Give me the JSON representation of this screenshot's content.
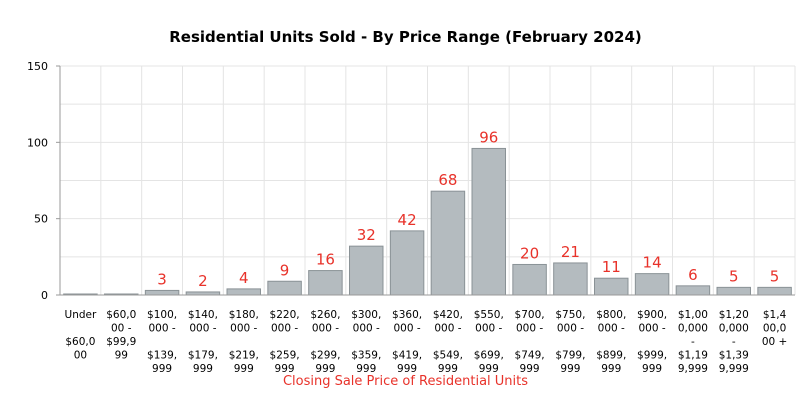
{
  "chart_data": {
    "type": "bar",
    "title": "Residential Units Sold - By Price Range (February 2024)",
    "xlabel": "Closing Sale Price of Residential Units",
    "ylabel": "",
    "ylim": [
      0,
      150
    ],
    "yticks": [
      "0",
      "50",
      "100",
      "150"
    ],
    "grid": true,
    "categories": [
      "Under $60,000",
      "$60,000 - $99,999",
      "$100,000 - $139,999",
      "$140,000 - $179,999",
      "$180,000 - $219,999",
      "$220,000 - $259,999",
      "$260,000 - $299,999",
      "$300,000 - $359,999",
      "$360,000 - $419,999",
      "$420,000 - $549,999",
      "$550,000 - $699,999",
      "$700,000 - $749,999",
      "$750,000 - $799,999",
      "$800,000 - $899,999",
      "$900,000 - $999,999",
      "$1,000,000 - $1,199,999",
      "$1,200,000 - $1,399,999",
      "$1,400,000 +"
    ],
    "category_lines": [
      [
        "Under",
        "",
        "$60,0",
        "00"
      ],
      [
        "$60,0",
        "00 -",
        "$99,9",
        "99"
      ],
      [
        "$100,",
        "000 -",
        "",
        "$139,",
        "999"
      ],
      [
        "$140,",
        "000 -",
        "",
        "$179,",
        "999"
      ],
      [
        "$180,",
        "000 -",
        "",
        "$219,",
        "999"
      ],
      [
        "$220,",
        "000 -",
        "",
        "$259,",
        "999"
      ],
      [
        "$260,",
        "000 -",
        "",
        "$299,",
        "999"
      ],
      [
        "$300,",
        "000 -",
        "",
        "$359,",
        "999"
      ],
      [
        "$360,",
        "000 -",
        "",
        "$419,",
        "999"
      ],
      [
        "$420,",
        "000 -",
        "",
        "$549,",
        "999"
      ],
      [
        "$550,",
        "000 -",
        "",
        "$699,",
        "999"
      ],
      [
        "$700,",
        "000 -",
        "",
        "$749,",
        "999"
      ],
      [
        "$750,",
        "000 -",
        "",
        "$799,",
        "999"
      ],
      [
        "$800,",
        "000 -",
        "",
        "$899,",
        "999"
      ],
      [
        "$900,",
        "000 -",
        "",
        "$999,",
        "999"
      ],
      [
        "$1,00",
        "0,000",
        "-",
        "$1,19",
        "9,999"
      ],
      [
        "$1,20",
        "0,000",
        "-",
        "$1,39",
        "9,999"
      ],
      [
        "$1,4",
        "00,0",
        "00 +"
      ]
    ],
    "values": [
      0,
      0,
      3,
      2,
      4,
      9,
      16,
      32,
      42,
      68,
      96,
      20,
      21,
      11,
      14,
      6,
      5,
      5
    ],
    "data_labels": [
      "",
      "",
      "3",
      "2",
      "4",
      "9",
      "16",
      "32",
      "42",
      "68",
      "96",
      "20",
      "21",
      "11",
      "14",
      "6",
      "5",
      "5"
    ],
    "colors": {
      "bar_fill": "#b4bbbf",
      "bar_stroke": "#8a9296",
      "data_label": "#e8322a",
      "xlabel": "#e8322a",
      "grid": "#e4e4e4",
      "axis": "#9a9a9a"
    }
  }
}
